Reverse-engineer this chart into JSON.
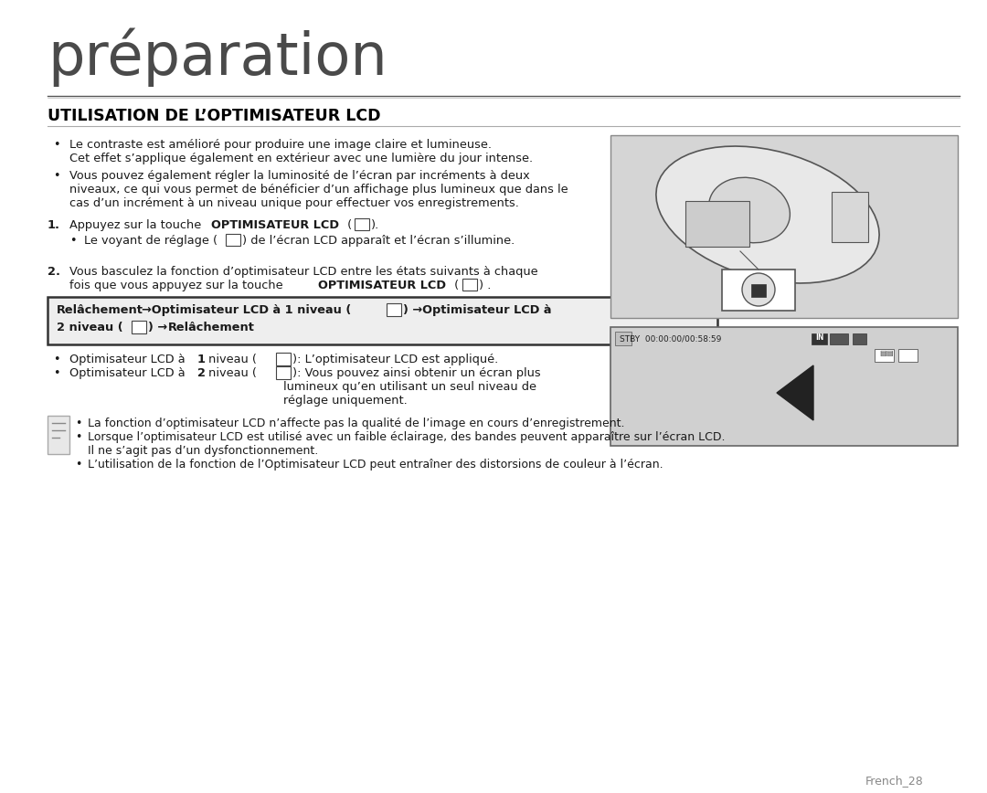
{
  "bg_color": "#ffffff",
  "title_text": "préparation",
  "section_title": "UTILISATION DE L’OPTIMISATEUR LCD",
  "b1l1": "Le contraste est amélioré pour produire une image claire et lumineuse.",
  "b1l2": "Cet effet s’applique également en extérieur avec une lumière du jour intense.",
  "b2l1": "Vous pouvez également régler la luminosité de l’écran par incréments à deux",
  "b2l2": "niveaux, ce qui vous permet de bénéficier d’un affichage plus lumineux que dans le",
  "b2l3": "cas d’un incrément à un niveau unique pour effectuer vos enregistrements.",
  "s1pre": "Appuyez sur la touche ",
  "s1bold": "OPTIMISATEUR LCD",
  "s1post": " (▤▤).",
  "s1sub": "Le voyant de réglage (▤▤) de l’écran LCD apparaît et l’écran s’illumine.",
  "s2l1": "Vous basculez la fonction d’optimisateur LCD entre les états suivants à chaque",
  "s2l2pre": "fois que vous appuyez sur la touche ",
  "s2l2bold": "OPTIMISATEUR LCD",
  "s2l2post": " (▤▤) .",
  "box1": "Relâchement →Optimisateur LCD à 1 niveau (▤▤) →Optimisateur LCD à",
  "box2": "2 niveau (▤▤) → Relâchement",
  "ob1pre": "Optimisateur LCD à ",
  "ob1bold": "1",
  "ob1post": " niveau (▤▤): L’optimisateur LCD est appliqué.",
  "ob2pre": "Optimisateur LCD à ",
  "ob2bold": "2",
  "ob2post": " niveau (▤▤): Vous pouvez ainsi obtenir un écran plus",
  "ob2l2": "lumineux qu’en utilisant un seul niveau de",
  "ob2l3": "réglage uniquement.",
  "n1": "La fonction d’optimisateur LCD n’affecte pas la qualité de l’image en cours d’enregistrement.",
  "n2l1": "Lorsque l’optimisateur LCD est utilisé avec un faible éclairage, des bandes peuvent apparaître sur l’écran LCD.",
  "n2l2": "Il ne s’agit pas d’un dysfonctionnement.",
  "n3": "L’utilisation de la fonction de l’Optimisateur LCD peut entraîner des distorsions de couleur à l’écran.",
  "footer": "French_28",
  "text_color": "#1a1a1a",
  "title_color": "#4a4a4a",
  "line_color": "#888888",
  "box_bg": "#eeeeee",
  "img_bg": "#d5d5d5",
  "lcd_bg": "#c8c8c8"
}
